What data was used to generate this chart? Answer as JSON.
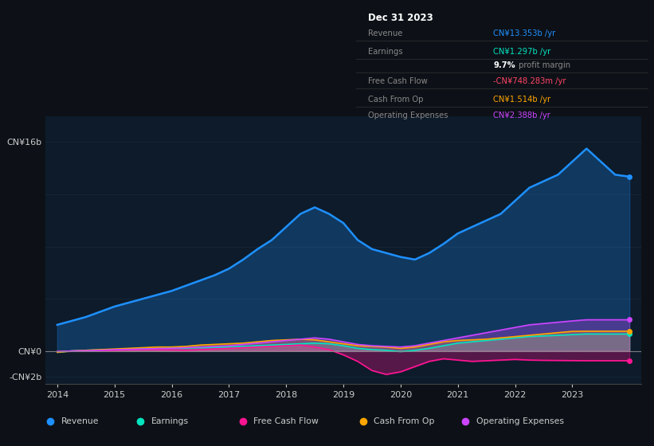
{
  "bg_color": "#0d1117",
  "plot_bg_color": "#0d1b2a",
  "grid_color": "#1e2d3d",
  "years": [
    2014,
    2014.25,
    2014.5,
    2014.75,
    2015,
    2015.25,
    2015.5,
    2015.75,
    2016,
    2016.25,
    2016.5,
    2016.75,
    2017,
    2017.25,
    2017.5,
    2017.75,
    2018,
    2018.25,
    2018.5,
    2018.75,
    2019,
    2019.25,
    2019.5,
    2019.75,
    2020,
    2020.25,
    2020.5,
    2020.75,
    2021,
    2021.25,
    2021.5,
    2021.75,
    2022,
    2022.25,
    2022.5,
    2022.75,
    2023,
    2023.25,
    2023.5,
    2023.75,
    2024
  ],
  "revenue": [
    2.0,
    2.3,
    2.6,
    3.0,
    3.4,
    3.7,
    4.0,
    4.3,
    4.6,
    5.0,
    5.4,
    5.8,
    6.3,
    7.0,
    7.8,
    8.5,
    9.5,
    10.5,
    11.0,
    10.5,
    9.8,
    8.5,
    7.8,
    7.5,
    7.2,
    7.0,
    7.5,
    8.2,
    9.0,
    9.5,
    10.0,
    10.5,
    11.5,
    12.5,
    13.0,
    13.5,
    14.5,
    15.5,
    14.5,
    13.5,
    13.353
  ],
  "earnings": [
    -0.1,
    0.0,
    0.05,
    0.08,
    0.1,
    0.12,
    0.15,
    0.18,
    0.2,
    0.22,
    0.25,
    0.28,
    0.3,
    0.35,
    0.4,
    0.45,
    0.5,
    0.55,
    0.6,
    0.55,
    0.4,
    0.2,
    0.1,
    0.05,
    -0.05,
    0.05,
    0.2,
    0.4,
    0.6,
    0.7,
    0.8,
    0.9,
    1.0,
    1.1,
    1.15,
    1.2,
    1.25,
    1.3,
    1.297,
    1.297,
    1.297
  ],
  "free_cash_flow": [
    -0.05,
    -0.02,
    0.0,
    0.02,
    0.05,
    0.08,
    0.1,
    0.1,
    0.08,
    0.05,
    0.1,
    0.15,
    0.2,
    0.25,
    0.3,
    0.35,
    0.4,
    0.45,
    0.3,
    0.1,
    -0.3,
    -0.8,
    -1.5,
    -1.8,
    -1.6,
    -1.2,
    -0.8,
    -0.6,
    -0.7,
    -0.8,
    -0.75,
    -0.7,
    -0.65,
    -0.7,
    -0.72,
    -0.73,
    -0.74,
    -0.745,
    -0.748,
    -0.748,
    -0.748
  ],
  "cash_from_op": [
    -0.1,
    0.0,
    0.05,
    0.1,
    0.15,
    0.2,
    0.25,
    0.3,
    0.3,
    0.35,
    0.45,
    0.5,
    0.55,
    0.6,
    0.7,
    0.8,
    0.85,
    0.9,
    0.85,
    0.7,
    0.55,
    0.4,
    0.35,
    0.3,
    0.2,
    0.3,
    0.5,
    0.7,
    0.8,
    0.85,
    0.9,
    1.0,
    1.1,
    1.2,
    1.3,
    1.4,
    1.5,
    1.514,
    1.514,
    1.514,
    1.514
  ],
  "op_expenses": [
    -0.05,
    0.0,
    0.02,
    0.05,
    0.1,
    0.12,
    0.15,
    0.18,
    0.2,
    0.25,
    0.3,
    0.35,
    0.4,
    0.5,
    0.6,
    0.7,
    0.8,
    0.9,
    1.0,
    0.9,
    0.7,
    0.5,
    0.4,
    0.35,
    0.3,
    0.4,
    0.6,
    0.8,
    1.0,
    1.2,
    1.4,
    1.6,
    1.8,
    2.0,
    2.1,
    2.2,
    2.3,
    2.388,
    2.388,
    2.388,
    2.388
  ],
  "revenue_color": "#1e90ff",
  "earnings_color": "#00e5c0",
  "fcf_color": "#ff1493",
  "cashop_color": "#ffa500",
  "opex_color": "#cc44ff",
  "ylim_min": -2.5,
  "ylim_max": 18.0,
  "xticks": [
    2014,
    2015,
    2016,
    2017,
    2018,
    2019,
    2020,
    2021,
    2022,
    2023
  ],
  "legend_items": [
    {
      "label": "Revenue",
      "color": "#1e90ff"
    },
    {
      "label": "Earnings",
      "color": "#00e5c0"
    },
    {
      "label": "Free Cash Flow",
      "color": "#ff1493"
    },
    {
      "label": "Cash From Op",
      "color": "#ffa500"
    },
    {
      "label": "Operating Expenses",
      "color": "#cc44ff"
    }
  ],
  "info_date": "Dec 31 2023",
  "info_rows": [
    {
      "label": "Revenue",
      "value": "CN¥13.353b /yr",
      "value_color": "#1e90ff",
      "sub": null
    },
    {
      "label": "Earnings",
      "value": "CN¥1.297b /yr",
      "value_color": "#00e5c0",
      "sub": "9.7% profit margin"
    },
    {
      "label": "Free Cash Flow",
      "value": "-CN¥748.283m /yr",
      "value_color": "#ff4466",
      "sub": null
    },
    {
      "label": "Cash From Op",
      "value": "CN¥1.514b /yr",
      "value_color": "#ffa500",
      "sub": null
    },
    {
      "label": "Operating Expenses",
      "value": "CN¥2.388b /yr",
      "value_color": "#cc44ff",
      "sub": null
    }
  ]
}
